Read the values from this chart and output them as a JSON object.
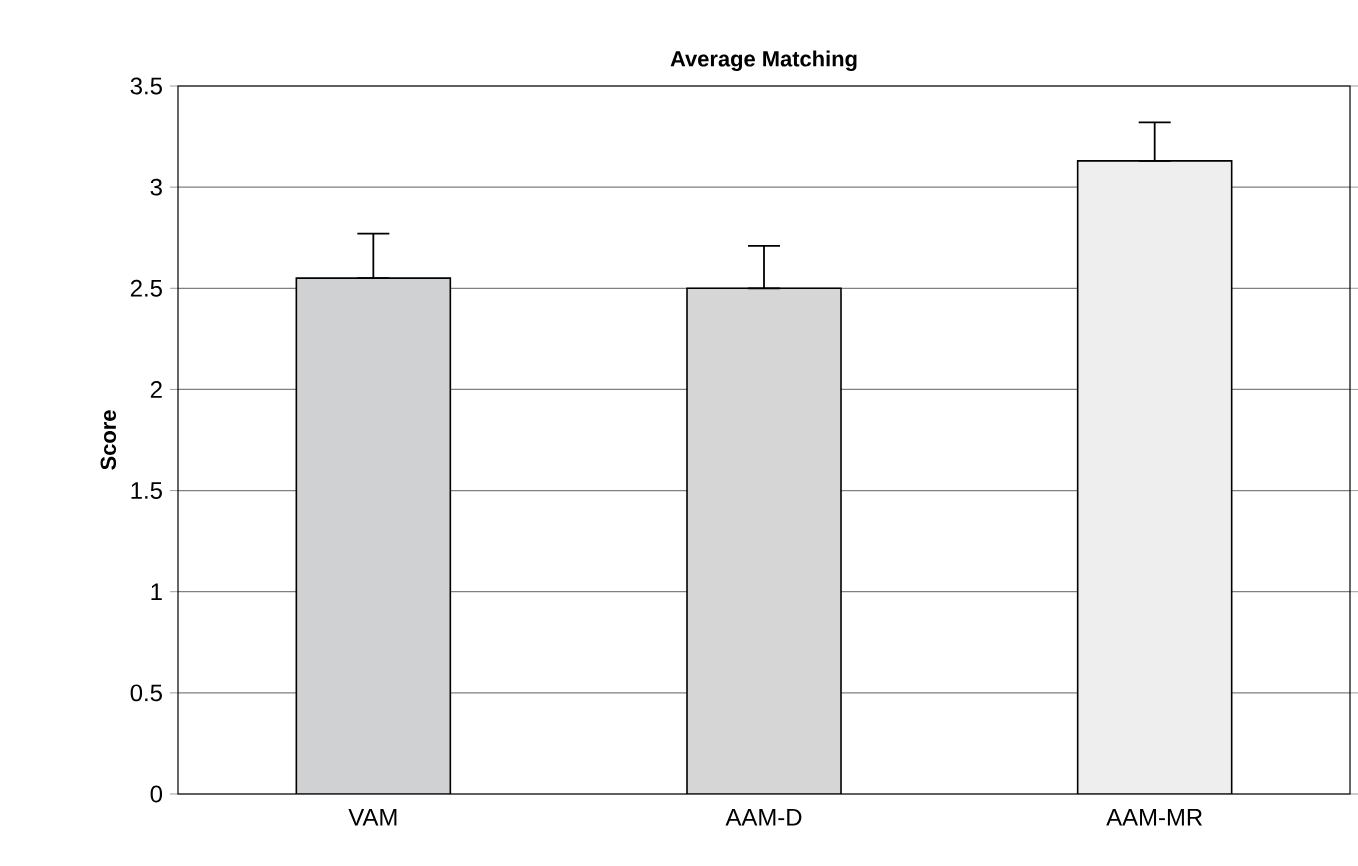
{
  "chart_data": {
    "type": "bar",
    "title": "Average Matching",
    "ylabel": "Score",
    "categories": [
      "VAM",
      "AAM-D",
      "AAM-MR"
    ],
    "values": [
      2.55,
      2.5,
      3.13
    ],
    "errors": [
      [
        2.55,
        2.77
      ],
      [
        2.5,
        2.71
      ],
      [
        3.13,
        3.32
      ]
    ],
    "colors": [
      "#d0d1d3",
      "#d6d6d6",
      "#eeeeee"
    ],
    "ylim": [
      0,
      3.5
    ],
    "yticks": [
      0,
      0.5,
      1,
      1.5,
      2,
      2.5,
      3,
      3.5
    ],
    "grid": "y"
  }
}
